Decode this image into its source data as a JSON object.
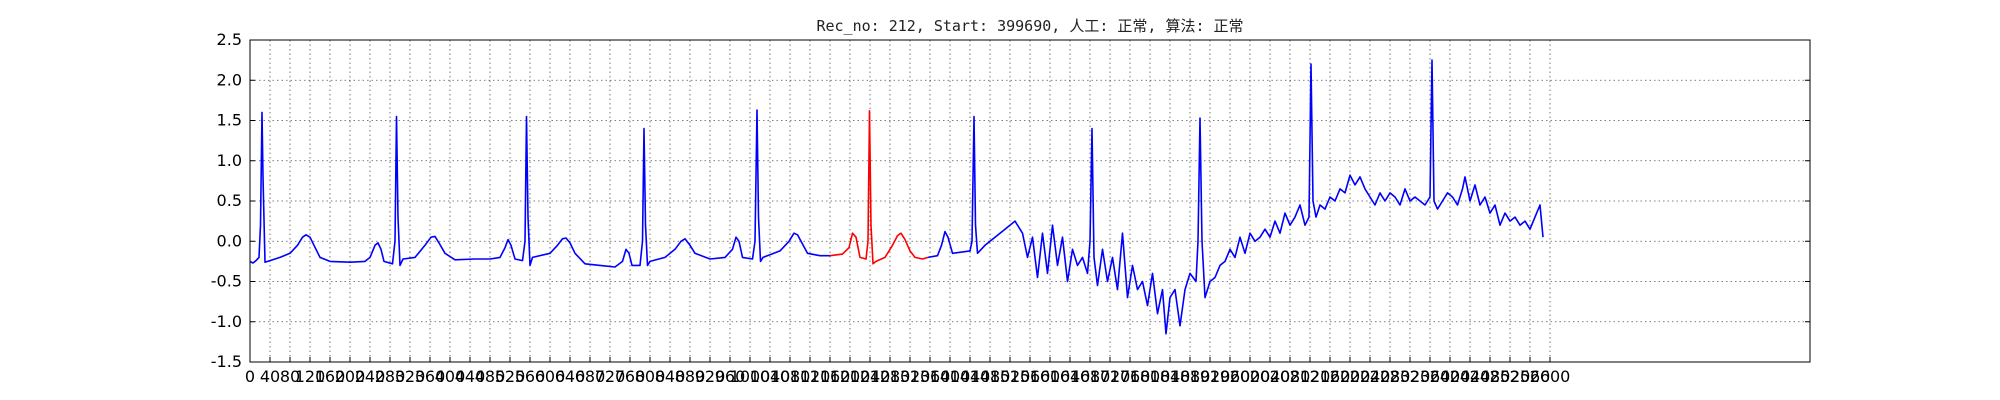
{
  "chart_data": {
    "type": "line",
    "title": "Rec_no: 212, Start: 399690, 人工: 正常, 算法: 正常",
    "xlabel": "",
    "ylabel": "",
    "xlim": [
      0,
      3120
    ],
    "ylim": [
      -1.5,
      2.5
    ],
    "grid": true,
    "x_ticks": [
      0,
      40,
      80,
      120,
      160,
      200,
      240,
      280,
      320,
      360,
      400,
      440,
      480,
      520,
      560,
      600,
      640,
      680,
      720,
      760,
      800,
      840,
      880,
      920,
      960,
      1000,
      1040,
      1080,
      1120,
      1160,
      1200,
      1240,
      1280,
      1320,
      1360,
      1400,
      1440,
      1480,
      1520,
      1560,
      1600,
      1640,
      1680,
      1720,
      1760,
      1800,
      1840,
      1880,
      1920,
      1960,
      2000,
      2040,
      2080,
      2120,
      2160,
      2200,
      2240,
      2280,
      2320,
      2360,
      2400,
      2440,
      2480,
      2520,
      2560,
      2600
    ],
    "y_ticks": [
      -1.5,
      -1.0,
      -0.5,
      0.0,
      0.5,
      1.0,
      1.5,
      2.0,
      2.5
    ],
    "series": [
      {
        "color": "#0000ff",
        "values": [
          [
            0,
            -0.25
          ],
          [
            6,
            -0.27
          ],
          [
            12,
            -0.24
          ],
          [
            18,
            -0.2
          ],
          [
            21,
            0.2
          ],
          [
            24,
            1.6
          ],
          [
            26,
            0.8
          ],
          [
            30,
            -0.26
          ],
          [
            40,
            -0.24
          ],
          [
            60,
            -0.2
          ],
          [
            80,
            -0.15
          ],
          [
            95,
            -0.05
          ],
          [
            105,
            0.05
          ],
          [
            112,
            0.08
          ],
          [
            120,
            0.05
          ],
          [
            128,
            -0.05
          ],
          [
            140,
            -0.2
          ],
          [
            160,
            -0.25
          ],
          [
            200,
            -0.26
          ],
          [
            230,
            -0.25
          ],
          [
            240,
            -0.2
          ],
          [
            250,
            -0.05
          ],
          [
            256,
            -0.02
          ],
          [
            262,
            -0.1
          ],
          [
            268,
            -0.25
          ],
          [
            285,
            -0.28
          ],
          [
            290,
            0.0
          ],
          [
            293,
            1.55
          ],
          [
            296,
            0.3
          ],
          [
            300,
            -0.3
          ],
          [
            306,
            -0.22
          ],
          [
            330,
            -0.2
          ],
          [
            350,
            -0.05
          ],
          [
            362,
            0.05
          ],
          [
            370,
            0.06
          ],
          [
            378,
            -0.02
          ],
          [
            390,
            -0.15
          ],
          [
            410,
            -0.23
          ],
          [
            450,
            -0.22
          ],
          [
            480,
            -0.22
          ],
          [
            500,
            -0.2
          ],
          [
            510,
            -0.08
          ],
          [
            516,
            0.02
          ],
          [
            522,
            -0.05
          ],
          [
            530,
            -0.22
          ],
          [
            545,
            -0.24
          ],
          [
            550,
            0.0
          ],
          [
            553,
            1.55
          ],
          [
            556,
            0.3
          ],
          [
            560,
            -0.3
          ],
          [
            565,
            -0.2
          ],
          [
            600,
            -0.15
          ],
          [
            615,
            -0.05
          ],
          [
            625,
            0.03
          ],
          [
            632,
            0.04
          ],
          [
            640,
            -0.02
          ],
          [
            650,
            -0.15
          ],
          [
            670,
            -0.28
          ],
          [
            700,
            -0.3
          ],
          [
            730,
            -0.32
          ],
          [
            745,
            -0.25
          ],
          [
            752,
            -0.1
          ],
          [
            758,
            -0.15
          ],
          [
            764,
            -0.3
          ],
          [
            780,
            -0.3
          ],
          [
            785,
            0.0
          ],
          [
            788,
            1.4
          ],
          [
            791,
            0.2
          ],
          [
            795,
            -0.3
          ],
          [
            800,
            -0.25
          ],
          [
            830,
            -0.2
          ],
          [
            850,
            -0.1
          ],
          [
            862,
            0.0
          ],
          [
            870,
            0.03
          ],
          [
            880,
            -0.05
          ],
          [
            890,
            -0.15
          ],
          [
            920,
            -0.22
          ],
          [
            950,
            -0.2
          ],
          [
            965,
            -0.1
          ],
          [
            972,
            0.05
          ],
          [
            978,
            0.0
          ],
          [
            985,
            -0.2
          ],
          [
            1005,
            -0.22
          ],
          [
            1010,
            0.0
          ],
          [
            1014,
            1.63
          ],
          [
            1017,
            0.3
          ],
          [
            1021,
            -0.25
          ],
          [
            1026,
            -0.2
          ],
          [
            1060,
            -0.12
          ],
          [
            1078,
            0.0
          ],
          [
            1088,
            0.1
          ],
          [
            1095,
            0.08
          ],
          [
            1102,
            0.0
          ],
          [
            1115,
            -0.15
          ],
          [
            1140,
            -0.18
          ],
          [
            1160,
            -0.18
          ]
        ]
      },
      {
        "color": "#ff0000",
        "values": [
          [
            1160,
            -0.18
          ],
          [
            1185,
            -0.16
          ],
          [
            1198,
            -0.08
          ],
          [
            1205,
            0.1
          ],
          [
            1212,
            0.05
          ],
          [
            1220,
            -0.2
          ],
          [
            1232,
            -0.22
          ],
          [
            1236,
            0.0
          ],
          [
            1239,
            1.62
          ],
          [
            1242,
            0.2
          ],
          [
            1246,
            -0.28
          ],
          [
            1252,
            -0.25
          ],
          [
            1270,
            -0.2
          ],
          [
            1285,
            -0.05
          ],
          [
            1295,
            0.07
          ],
          [
            1302,
            0.1
          ],
          [
            1310,
            0.02
          ],
          [
            1320,
            -0.12
          ],
          [
            1330,
            -0.2
          ],
          [
            1345,
            -0.22
          ],
          [
            1356,
            -0.2
          ]
        ]
      },
      {
        "color": "#0000ff",
        "values": [
          [
            1356,
            -0.2
          ],
          [
            1375,
            -0.18
          ],
          [
            1383,
            -0.05
          ],
          [
            1390,
            0.12
          ],
          [
            1396,
            0.05
          ],
          [
            1405,
            -0.15
          ],
          [
            1440,
            -0.12
          ],
          [
            1444,
            0.0
          ],
          [
            1448,
            1.55
          ],
          [
            1451,
            0.2
          ],
          [
            1455,
            -0.15
          ],
          [
            1470,
            -0.05
          ],
          [
            1490,
            0.05
          ],
          [
            1510,
            0.15
          ],
          [
            1530,
            0.25
          ],
          [
            1545,
            0.1
          ],
          [
            1555,
            -0.2
          ],
          [
            1565,
            0.05
          ],
          [
            1575,
            -0.45
          ],
          [
            1585,
            0.1
          ],
          [
            1595,
            -0.4
          ],
          [
            1605,
            0.2
          ],
          [
            1615,
            -0.3
          ],
          [
            1625,
            0.05
          ],
          [
            1635,
            -0.5
          ],
          [
            1645,
            -0.1
          ],
          [
            1655,
            -0.3
          ],
          [
            1665,
            -0.2
          ],
          [
            1675,
            -0.4
          ],
          [
            1680,
            0.0
          ],
          [
            1684,
            1.4
          ],
          [
            1688,
            -0.2
          ],
          [
            1695,
            -0.55
          ],
          [
            1705,
            -0.1
          ],
          [
            1715,
            -0.5
          ],
          [
            1725,
            -0.2
          ],
          [
            1735,
            -0.6
          ],
          [
            1745,
            0.1
          ],
          [
            1755,
            -0.7
          ],
          [
            1765,
            -0.3
          ],
          [
            1775,
            -0.6
          ],
          [
            1785,
            -0.5
          ],
          [
            1795,
            -0.8
          ],
          [
            1805,
            -0.4
          ],
          [
            1815,
            -0.9
          ],
          [
            1825,
            -0.6
          ],
          [
            1832,
            -1.15
          ],
          [
            1840,
            -0.7
          ],
          [
            1850,
            -0.6
          ],
          [
            1860,
            -1.05
          ],
          [
            1870,
            -0.6
          ],
          [
            1880,
            -0.4
          ],
          [
            1892,
            -0.5
          ],
          [
            1896,
            0.0
          ],
          [
            1900,
            1.53
          ],
          [
            1904,
            0.0
          ],
          [
            1910,
            -0.7
          ],
          [
            1920,
            -0.5
          ],
          [
            1930,
            -0.45
          ],
          [
            1940,
            -0.3
          ],
          [
            1950,
            -0.25
          ],
          [
            1960,
            -0.1
          ],
          [
            1970,
            -0.2
          ],
          [
            1980,
            0.05
          ],
          [
            1990,
            -0.15
          ],
          [
            2000,
            0.1
          ],
          [
            2010,
            0.0
          ],
          [
            2020,
            0.05
          ],
          [
            2030,
            0.15
          ],
          [
            2040,
            0.05
          ],
          [
            2050,
            0.25
          ],
          [
            2060,
            0.1
          ],
          [
            2070,
            0.35
          ],
          [
            2080,
            0.2
          ],
          [
            2090,
            0.3
          ],
          [
            2100,
            0.45
          ],
          [
            2110,
            0.2
          ],
          [
            2118,
            0.3
          ],
          [
            2122,
            2.2
          ],
          [
            2126,
            0.5
          ],
          [
            2132,
            0.3
          ],
          [
            2140,
            0.45
          ],
          [
            2150,
            0.4
          ],
          [
            2160,
            0.55
          ],
          [
            2170,
            0.5
          ],
          [
            2180,
            0.65
          ],
          [
            2190,
            0.6
          ],
          [
            2200,
            0.82
          ],
          [
            2210,
            0.7
          ],
          [
            2220,
            0.8
          ],
          [
            2230,
            0.65
          ],
          [
            2240,
            0.55
          ],
          [
            2250,
            0.45
          ],
          [
            2260,
            0.6
          ],
          [
            2270,
            0.5
          ],
          [
            2280,
            0.6
          ],
          [
            2290,
            0.55
          ],
          [
            2300,
            0.45
          ],
          [
            2310,
            0.65
          ],
          [
            2320,
            0.5
          ],
          [
            2330,
            0.55
          ],
          [
            2340,
            0.5
          ],
          [
            2350,
            0.45
          ],
          [
            2360,
            0.55
          ],
          [
            2364,
            2.25
          ],
          [
            2368,
            0.5
          ],
          [
            2375,
            0.4
          ],
          [
            2385,
            0.5
          ],
          [
            2395,
            0.6
          ],
          [
            2405,
            0.55
          ],
          [
            2415,
            0.45
          ],
          [
            2425,
            0.65
          ],
          [
            2430,
            0.8
          ],
          [
            2440,
            0.5
          ],
          [
            2450,
            0.7
          ],
          [
            2460,
            0.45
          ],
          [
            2470,
            0.55
          ],
          [
            2480,
            0.35
          ],
          [
            2490,
            0.45
          ],
          [
            2500,
            0.2
          ],
          [
            2510,
            0.35
          ],
          [
            2520,
            0.25
          ],
          [
            2530,
            0.3
          ],
          [
            2540,
            0.2
          ],
          [
            2550,
            0.25
          ],
          [
            2560,
            0.15
          ],
          [
            2570,
            0.3
          ],
          [
            2580,
            0.45
          ],
          [
            2586,
            0.05
          ]
        ]
      }
    ]
  }
}
